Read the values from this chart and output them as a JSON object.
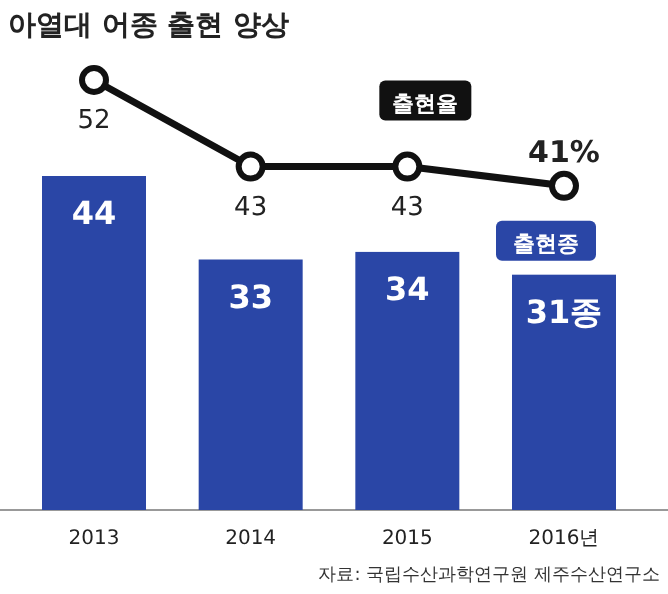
{
  "chart_data": {
    "type": "bar",
    "title": "아열대 어종 출현 양상",
    "categories": [
      "2013",
      "2014",
      "2015",
      "2016년"
    ],
    "series": [
      {
        "name": "출현종",
        "color": "#2a46a6",
        "values": [
          44,
          33,
          34,
          31
        ],
        "value_labels": [
          "44",
          "33",
          "34",
          "31종"
        ]
      },
      {
        "name": "출현율",
        "type": "line",
        "axis": "y2",
        "color": "#111111",
        "values": [
          52,
          43,
          43,
          41
        ],
        "value_labels": [
          "52",
          "43",
          "43",
          "41%"
        ]
      }
    ],
    "marker": "circle",
    "annotations": [
      "자료: 국립수산과학연구원 제주수산연구소"
    ]
  }
}
